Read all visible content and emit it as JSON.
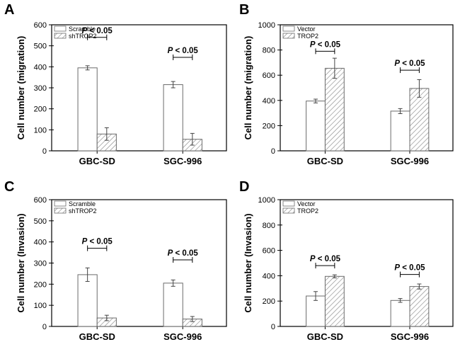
{
  "colors": {
    "axis": "#000000",
    "bar_stroke": "#6b6b6b",
    "hatch": "#8a8a8a",
    "fill": "#ffffff"
  },
  "chart_data": [
    {
      "panel": "A",
      "type": "bar",
      "ylabel": "Cell number (migration)",
      "ylim": [
        0,
        600
      ],
      "yticks": [
        0,
        100,
        200,
        300,
        400,
        500,
        600
      ],
      "categories": [
        "GBC-SD",
        "SGC-996"
      ],
      "series": [
        {
          "name": "Scramble",
          "pattern": "open",
          "values": [
            395,
            315
          ],
          "errors": [
            10,
            15
          ]
        },
        {
          "name": "shTROP2",
          "pattern": "hatched",
          "values": [
            80,
            55
          ],
          "errors": [
            30,
            28
          ]
        }
      ],
      "annotations": [
        {
          "category": "GBC-SD",
          "text": "P < 0.05",
          "bracket_y": 540
        },
        {
          "category": "SGC-996",
          "text": "P < 0.05",
          "bracket_y": 445
        }
      ]
    },
    {
      "panel": "B",
      "type": "bar",
      "ylabel": "Cell number (migration)",
      "ylim": [
        0,
        1000
      ],
      "yticks": [
        0,
        200,
        400,
        600,
        800,
        1000
      ],
      "categories": [
        "GBC-SD",
        "SGC-996"
      ],
      "series": [
        {
          "name": "Vector",
          "pattern": "open",
          "values": [
            395,
            315
          ],
          "errors": [
            15,
            20
          ]
        },
        {
          "name": "TROP2",
          "pattern": "hatched",
          "values": [
            655,
            495
          ],
          "errors": [
            80,
            70
          ]
        }
      ],
      "annotations": [
        {
          "category": "GBC-SD",
          "text": "P < 0.05",
          "bracket_y": 790
        },
        {
          "category": "SGC-996",
          "text": "P < 0.05",
          "bracket_y": 640
        }
      ]
    },
    {
      "panel": "C",
      "type": "bar",
      "ylabel": "Cell number (Invasion)",
      "ylim": [
        0,
        600
      ],
      "yticks": [
        0,
        100,
        200,
        300,
        400,
        500,
        600
      ],
      "categories": [
        "GBC-SD",
        "SGC-996"
      ],
      "series": [
        {
          "name": "Scramble",
          "pattern": "open",
          "values": [
            245,
            205
          ],
          "errors": [
            32,
            15
          ]
        },
        {
          "name": "shTROP2",
          "pattern": "hatched",
          "values": [
            40,
            35
          ],
          "errors": [
            13,
            12
          ]
        }
      ],
      "annotations": [
        {
          "category": "GBC-SD",
          "text": "P < 0.05",
          "bracket_y": 370
        },
        {
          "category": "SGC-996",
          "text": "P < 0.05",
          "bracket_y": 315
        }
      ]
    },
    {
      "panel": "D",
      "type": "bar",
      "ylabel": "Cell number (Invasion)",
      "ylim": [
        0,
        1000
      ],
      "yticks": [
        0,
        200,
        400,
        600,
        800,
        1000
      ],
      "categories": [
        "GBC-SD",
        "SGC-996"
      ],
      "series": [
        {
          "name": "Vector",
          "pattern": "open",
          "values": [
            240,
            205
          ],
          "errors": [
            35,
            15
          ]
        },
        {
          "name": "TROP2",
          "pattern": "hatched",
          "values": [
            395,
            315
          ],
          "errors": [
            12,
            20
          ]
        }
      ],
      "annotations": [
        {
          "category": "GBC-SD",
          "text": "P < 0.05",
          "bracket_y": 480
        },
        {
          "category": "SGC-996",
          "text": "P < 0.05",
          "bracket_y": 410
        }
      ]
    }
  ]
}
